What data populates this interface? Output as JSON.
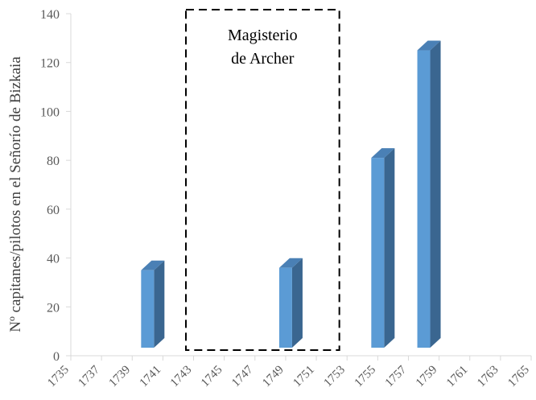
{
  "chart_data": {
    "type": "bar",
    "bar_style": "3d",
    "ylabel": "Nº capitanes/pilotos en el  Señorío de Bizkaia",
    "xlabel": "",
    "title": "",
    "ylim": [
      0,
      140
    ],
    "yticks": [
      0,
      20,
      40,
      60,
      80,
      100,
      120,
      140
    ],
    "xlim": [
      1735,
      1765
    ],
    "xticks": [
      1735,
      1737,
      1739,
      1741,
      1743,
      1745,
      1747,
      1749,
      1751,
      1753,
      1755,
      1757,
      1759,
      1761,
      1763,
      1765
    ],
    "bars": [
      {
        "year": 1740,
        "value": 35
      },
      {
        "year": 1749,
        "value": 36
      },
      {
        "year": 1755,
        "value": 81
      },
      {
        "year": 1758,
        "value": 125
      }
    ],
    "annotation": {
      "text_lines": [
        "Magisterio",
        "de Archer"
      ],
      "range": [
        1742.5,
        1752.5
      ],
      "border": "dashed"
    },
    "colors": {
      "bar_front": "#5b9bd5",
      "bar_side": "#3a6690",
      "bar_top": "#4a80b5",
      "axis": "#d9d9d9",
      "tick_text": "#595959"
    }
  }
}
